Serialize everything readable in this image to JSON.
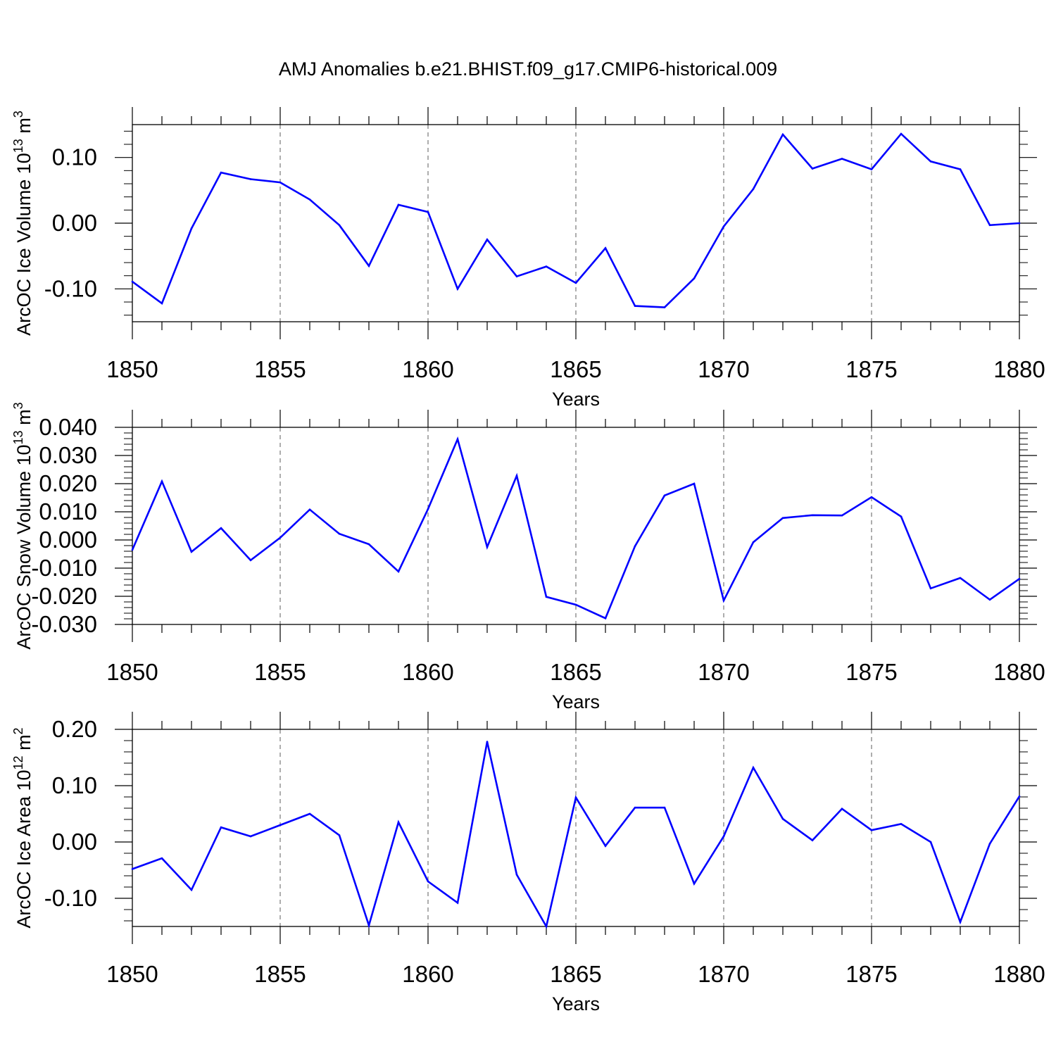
{
  "title": "AMJ Anomalies b.e21.BHIST.f09_g17.CMIP6-historical.009",
  "colors": {
    "line": "#0000ff",
    "axis": "#000000",
    "grid": "#777777"
  },
  "chart_data": [
    {
      "type": "line",
      "ylabel": "ArcOC Ice Volume 10",
      "ylabel_exp": "13",
      "ylabel_unit": " m",
      "ylabel_unit_exp": "3",
      "xlabel": "Years",
      "xlim": [
        1850,
        1880
      ],
      "ylim": [
        -0.15,
        0.15
      ],
      "yticks": [
        -0.1,
        0.0,
        0.1
      ],
      "ytick_labels": [
        "-0.10",
        "0.00",
        "0.10"
      ],
      "yminor": 0.02,
      "xticks": [
        1850,
        1855,
        1860,
        1865,
        1870,
        1875,
        1880
      ],
      "xtick_labels": [
        "1850",
        "1855",
        "1860",
        "1865",
        "1870",
        "1875",
        "1880"
      ],
      "x": [
        1850,
        1851,
        1852,
        1853,
        1854,
        1855,
        1856,
        1857,
        1858,
        1859,
        1860,
        1861,
        1862,
        1863,
        1864,
        1865,
        1866,
        1867,
        1868,
        1869,
        1870,
        1871,
        1872,
        1873,
        1874,
        1875,
        1876,
        1877,
        1878,
        1879,
        1880
      ],
      "values": [
        -0.089,
        -0.122,
        -0.008,
        0.077,
        0.067,
        0.062,
        0.036,
        -0.003,
        -0.065,
        0.028,
        0.017,
        -0.1,
        -0.025,
        -0.081,
        -0.066,
        -0.091,
        -0.038,
        -0.126,
        -0.128,
        -0.084,
        -0.005,
        0.052,
        0.135,
        0.083,
        0.098,
        0.082,
        0.136,
        0.094,
        0.082,
        -0.003,
        0.0
      ]
    },
    {
      "type": "line",
      "ylabel": "ArcOC Snow Volume 10",
      "ylabel_exp": "13",
      "ylabel_unit": " m",
      "ylabel_unit_exp": "3",
      "xlabel": "Years",
      "xlim": [
        1850,
        1880
      ],
      "ylim": [
        -0.03,
        0.04
      ],
      "yticks": [
        -0.03,
        -0.02,
        -0.01,
        0.0,
        0.01,
        0.02,
        0.03,
        0.04
      ],
      "ytick_labels": [
        "-0.030",
        "-0.020",
        "-0.010",
        "0.000",
        "0.010",
        "0.020",
        "0.030",
        "0.040"
      ],
      "yminor": 0.002,
      "xticks": [
        1850,
        1855,
        1860,
        1865,
        1870,
        1875,
        1880
      ],
      "xtick_labels": [
        "1850",
        "1855",
        "1860",
        "1865",
        "1870",
        "1875",
        "1880"
      ],
      "x": [
        1850,
        1851,
        1852,
        1853,
        1854,
        1855,
        1856,
        1857,
        1858,
        1859,
        1860,
        1861,
        1862,
        1863,
        1864,
        1865,
        1866,
        1867,
        1868,
        1869,
        1870,
        1871,
        1872,
        1873,
        1874,
        1875,
        1876,
        1877,
        1878,
        1879,
        1880
      ],
      "values": [
        -0.0035,
        0.0208,
        -0.0042,
        0.0042,
        -0.0072,
        0.0008,
        0.0108,
        0.0022,
        -0.0015,
        -0.0112,
        0.011,
        0.0358,
        -0.0025,
        0.0228,
        -0.0202,
        -0.023,
        -0.0278,
        -0.0022,
        0.0158,
        0.02,
        -0.0215,
        -0.0008,
        0.0078,
        0.0088,
        0.0087,
        0.0152,
        0.0083,
        -0.0172,
        -0.0135,
        -0.0212,
        -0.0138
      ]
    },
    {
      "type": "line",
      "ylabel": "ArcOC Ice Area 10",
      "ylabel_exp": "12",
      "ylabel_unit": " m",
      "ylabel_unit_exp": "2",
      "xlabel": "Years",
      "xlim": [
        1850,
        1880
      ],
      "ylim": [
        -0.15,
        0.2
      ],
      "yticks": [
        -0.1,
        0.0,
        0.1,
        0.2
      ],
      "ytick_labels": [
        "-0.10",
        "0.00",
        "0.10",
        "0.20"
      ],
      "yminor": 0.02,
      "xticks": [
        1850,
        1855,
        1860,
        1865,
        1870,
        1875,
        1880
      ],
      "xtick_labels": [
        "1850",
        "1855",
        "1860",
        "1865",
        "1870",
        "1875",
        "1880"
      ],
      "x": [
        1850,
        1851,
        1852,
        1853,
        1854,
        1855,
        1856,
        1857,
        1858,
        1859,
        1860,
        1861,
        1862,
        1863,
        1864,
        1865,
        1866,
        1867,
        1868,
        1869,
        1870,
        1871,
        1872,
        1873,
        1874,
        1875,
        1876,
        1877,
        1878,
        1879,
        1880
      ],
      "values": [
        -0.048,
        -0.029,
        -0.085,
        0.026,
        0.01,
        0.03,
        0.05,
        0.012,
        -0.148,
        0.035,
        -0.07,
        -0.108,
        0.178,
        -0.058,
        -0.15,
        0.079,
        -0.007,
        0.061,
        0.061,
        -0.074,
        0.01,
        0.132,
        0.041,
        0.003,
        0.059,
        0.021,
        0.032,
        0.0,
        -0.142,
        -0.003,
        0.081
      ]
    }
  ]
}
